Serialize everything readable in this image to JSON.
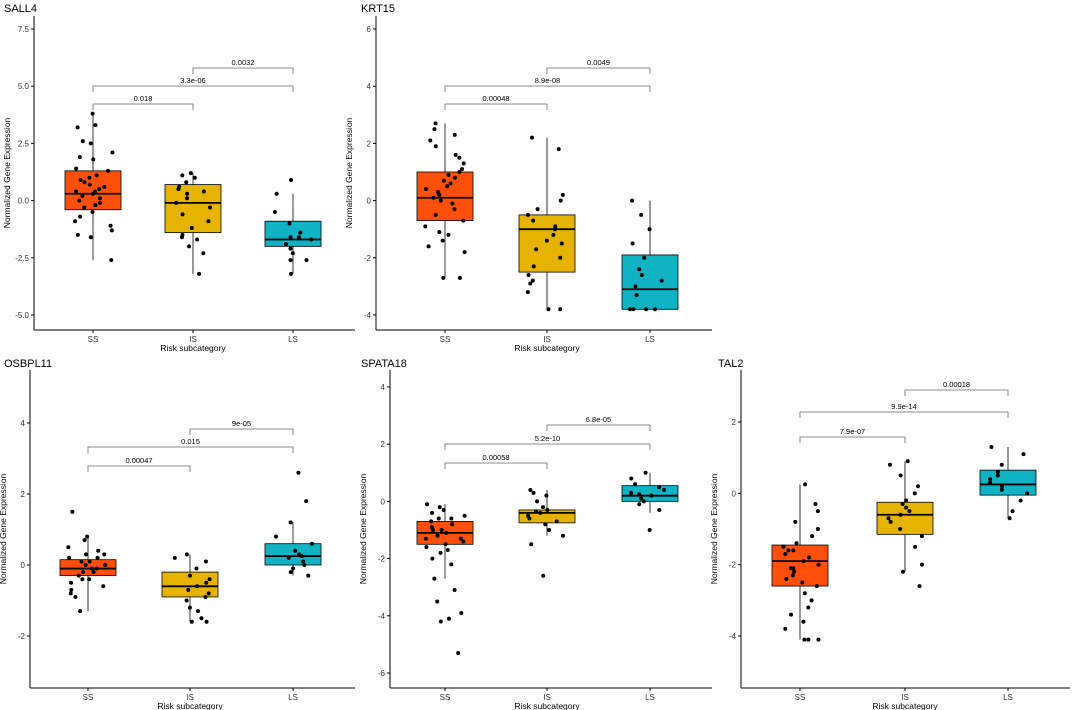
{
  "figure": {
    "xlabel": "Risk subcategory",
    "ylabel": "Normalized Gene Expression",
    "group_colors": {
      "SS": "#FF4F0A",
      "IS": "#E6B400",
      "LS": "#0FB3C3"
    }
  },
  "chart_data": [
    {
      "type": "box",
      "title": "SALL4",
      "xlabel": "Risk subcategory",
      "ylabel": "Normalized Gene Expression",
      "categories": [
        "SS",
        "IS",
        "LS"
      ],
      "ylim": [
        -6.1,
        7.9
      ],
      "yticks": [
        -5,
        -2.5,
        0,
        2.5,
        5,
        7.5
      ],
      "ytick_labels": [
        "-5.0",
        "-2.5",
        "0.0",
        "2.5",
        "5.0",
        "7.5"
      ],
      "boxes": [
        {
          "group": "SS",
          "whisker_low": -2.6,
          "q1": -0.4,
          "median": 0.3,
          "q3": 1.3,
          "whisker_high": 3.8
        },
        {
          "group": "IS",
          "whisker_low": -3.2,
          "q1": -1.4,
          "median": -0.1,
          "q3": 0.7,
          "whisker_high": 1.2
        },
        {
          "group": "LS",
          "whisker_low": -3.2,
          "q1": -2.0,
          "median": -1.7,
          "q3": -0.9,
          "whisker_high": 0.3
        }
      ],
      "points": [
        {
          "group": "SS",
          "values": [
            3.8,
            3.3,
            3.2,
            2.6,
            2.5,
            1.8,
            1.4,
            1.3,
            1.1,
            1.0,
            0.8,
            0.6,
            0.5,
            0.4,
            0.3,
            0.2,
            0.1,
            0.0,
            -0.2,
            -0.5,
            -0.7,
            -0.9,
            -1.1,
            -1.3,
            -1.5,
            -1.6,
            -2.6,
            0.9,
            0.7,
            0.4,
            -0.1,
            -0.3,
            1.9,
            2.1
          ]
        },
        {
          "group": "IS",
          "values": [
            1.2,
            1.1,
            1.0,
            0.8,
            0.6,
            0.4,
            0.3,
            0.1,
            -0.1,
            -0.3,
            -0.6,
            -0.9,
            -1.2,
            -1.5,
            -1.7,
            -2.0,
            -2.3,
            -3.2,
            0.5,
            -1.6
          ]
        },
        {
          "group": "LS",
          "values": [
            0.9,
            0.3,
            -0.5,
            -1.0,
            -1.4,
            -1.6,
            -1.7,
            -1.9,
            -2.1,
            -2.3,
            -2.6,
            -2.6,
            -3.2,
            -1.6
          ]
        }
      ],
      "comparisons": [
        {
          "from": "SS",
          "to": "IS",
          "label": "0.018"
        },
        {
          "from": "SS",
          "to": "LS",
          "label": "3.3e-06"
        },
        {
          "from": "IS",
          "to": "LS",
          "label": "0.0032"
        }
      ]
    },
    {
      "type": "box",
      "title": "KRT15",
      "xlabel": "Risk subcategory",
      "ylabel": "Normalized Gene Expression",
      "categories": [
        "SS",
        "IS",
        "LS"
      ],
      "ylim": [
        -4.4,
        6.6
      ],
      "yticks": [
        -4,
        -2,
        0,
        2,
        4,
        6
      ],
      "ytick_labels": [
        "-4",
        "-2",
        "0",
        "2",
        "4",
        "6"
      ],
      "boxes": [
        {
          "group": "SS",
          "whisker_low": -2.7,
          "q1": -0.7,
          "median": 0.1,
          "q3": 1.0,
          "whisker_high": 2.7
        },
        {
          "group": "IS",
          "whisker_low": -3.8,
          "q1": -2.5,
          "median": -1.0,
          "q3": -0.5,
          "whisker_high": 2.2
        },
        {
          "group": "LS",
          "whisker_low": -3.8,
          "q1": -3.8,
          "median": -3.1,
          "q3": -1.9,
          "whisker_high": 0.0
        }
      ],
      "points": [
        {
          "group": "SS",
          "values": [
            2.7,
            2.5,
            2.3,
            2.1,
            1.9,
            1.6,
            1.5,
            1.3,
            1.1,
            1.0,
            0.8,
            0.6,
            0.5,
            0.4,
            0.3,
            0.2,
            0.1,
            0.0,
            -0.1,
            -0.3,
            -0.5,
            -0.7,
            -0.9,
            -1.1,
            -1.2,
            -1.4,
            -1.6,
            -1.8,
            -2.7,
            -2.7,
            0.9,
            0.7
          ]
        },
        {
          "group": "IS",
          "values": [
            2.2,
            1.8,
            0.2,
            -0.3,
            -0.5,
            -0.7,
            -0.9,
            -1.0,
            -1.2,
            -1.5,
            -1.7,
            -2.0,
            -2.3,
            -2.6,
            -2.9,
            -3.2,
            -3.8,
            -3.8,
            0.0,
            -2.8,
            -1.4
          ]
        },
        {
          "group": "LS",
          "values": [
            0.0,
            -0.5,
            -1.0,
            -1.5,
            -2.0,
            -2.4,
            -2.6,
            -2.8,
            -3.0,
            -3.3,
            -3.8,
            -3.8,
            -3.8,
            -3.8
          ]
        }
      ],
      "comparisons": [
        {
          "from": "SS",
          "to": "IS",
          "label": "0.00048"
        },
        {
          "from": "SS",
          "to": "LS",
          "label": "8.9e-08"
        },
        {
          "from": "IS",
          "to": "LS",
          "label": "0.0049"
        }
      ]
    },
    {
      "type": "box",
      "title": "OSBPL11",
      "xlabel": "Risk subcategory",
      "ylabel": "Normalized Gene Expression",
      "categories": [
        "SS",
        "IS",
        "LS"
      ],
      "ylim": [
        -3.5,
        5.3
      ],
      "yticks": [
        -2,
        0,
        2,
        4
      ],
      "ytick_labels": [
        "-2",
        "0",
        "2",
        "4"
      ],
      "boxes": [
        {
          "group": "SS",
          "whisker_low": -1.3,
          "q1": -0.3,
          "median": -0.1,
          "q3": 0.15,
          "whisker_high": 0.8
        },
        {
          "group": "IS",
          "whisker_low": -1.6,
          "q1": -0.9,
          "median": -0.6,
          "q3": -0.2,
          "whisker_high": 0.3
        },
        {
          "group": "LS",
          "whisker_low": -0.3,
          "q1": 0.0,
          "median": 0.25,
          "q3": 0.6,
          "whisker_high": 1.2
        }
      ],
      "points": [
        {
          "group": "SS",
          "values": [
            1.5,
            0.8,
            0.7,
            0.5,
            0.4,
            0.3,
            0.2,
            0.1,
            0.0,
            -0.1,
            -0.2,
            -0.3,
            -0.4,
            -0.5,
            -0.6,
            -0.7,
            -0.8,
            -0.9,
            -1.3,
            0.2,
            -0.1,
            0.0,
            -0.2,
            0.1,
            0.3,
            -0.4
          ]
        },
        {
          "group": "IS",
          "values": [
            0.3,
            0.2,
            0.1,
            -0.1,
            -0.3,
            -0.5,
            -0.6,
            -0.7,
            -0.8,
            -0.9,
            -1.0,
            -1.2,
            -1.3,
            -1.5,
            -1.6,
            -1.6,
            -0.4
          ]
        },
        {
          "group": "LS",
          "values": [
            2.6,
            1.8,
            1.2,
            0.8,
            0.6,
            0.4,
            0.3,
            0.2,
            0.1,
            0.0,
            -0.1,
            -0.2,
            -0.3,
            0.25
          ]
        }
      ],
      "comparisons": [
        {
          "from": "SS",
          "to": "IS",
          "label": "0.00047"
        },
        {
          "from": "SS",
          "to": "LS",
          "label": "0.015"
        },
        {
          "from": "IS",
          "to": "LS",
          "label": "9e-05"
        }
      ]
    },
    {
      "type": "box",
      "title": "SPATA18",
      "xlabel": "Risk subcategory",
      "ylabel": "Normalized Gene Expression",
      "categories": [
        "SS",
        "IS",
        "LS"
      ],
      "ylim": [
        -6.4,
        4.4
      ],
      "yticks": [
        -6,
        -4,
        -2,
        0,
        2,
        4
      ],
      "ytick_labels": [
        "-6",
        "-4",
        "-2",
        "0",
        "2",
        "4"
      ],
      "boxes": [
        {
          "group": "SS",
          "whisker_low": -2.7,
          "q1": -1.5,
          "median": -1.1,
          "q3": -0.7,
          "whisker_high": -0.1
        },
        {
          "group": "IS",
          "whisker_low": -1.2,
          "q1": -0.75,
          "median": -0.4,
          "q3": -0.3,
          "whisker_high": 0.4
        },
        {
          "group": "LS",
          "whisker_low": -0.4,
          "q1": 0.0,
          "median": 0.2,
          "q3": 0.55,
          "whisker_high": 1.0
        }
      ],
      "points": [
        {
          "group": "SS",
          "values": [
            -0.1,
            -0.2,
            -0.3,
            -0.5,
            -0.6,
            -0.7,
            -0.8,
            -0.9,
            -1.0,
            -1.1,
            -1.2,
            -1.3,
            -1.4,
            -1.5,
            -1.6,
            -1.8,
            -2.0,
            -2.2,
            -2.7,
            -3.1,
            -3.5,
            -3.9,
            -4.1,
            -4.2,
            -5.3,
            -0.4,
            -0.6,
            -1.0,
            -1.3,
            -1.7
          ]
        },
        {
          "group": "IS",
          "values": [
            0.4,
            0.3,
            0.2,
            0.0,
            -0.2,
            -0.3,
            -0.4,
            -0.5,
            -0.6,
            -0.7,
            -0.8,
            -1.0,
            -1.2,
            -1.5,
            -2.6,
            -0.35
          ]
        },
        {
          "group": "LS",
          "values": [
            1.0,
            0.8,
            0.6,
            0.5,
            0.4,
            0.3,
            0.2,
            0.1,
            0.0,
            -0.1,
            -0.3,
            -1.0,
            0.25
          ]
        }
      ],
      "comparisons": [
        {
          "from": "SS",
          "to": "IS",
          "label": "0.00058"
        },
        {
          "from": "SS",
          "to": "LS",
          "label": "5.2e-10"
        },
        {
          "from": "IS",
          "to": "LS",
          "label": "6.8e-05"
        }
      ]
    },
    {
      "type": "box",
      "title": "TAL2",
      "xlabel": "Risk subcategory",
      "ylabel": "Normalized Gene Expression",
      "categories": [
        "SS",
        "IS",
        "LS"
      ],
      "ylim": [
        -5.4,
        3.3
      ],
      "yticks": [
        -4,
        -2,
        0,
        2
      ],
      "ytick_labels": [
        "-4",
        "-2",
        "0",
        "2"
      ],
      "boxes": [
        {
          "group": "SS",
          "whisker_low": -4.1,
          "q1": -2.6,
          "median": -1.9,
          "q3": -1.45,
          "whisker_high": 0.25
        },
        {
          "group": "IS",
          "whisker_low": -2.2,
          "q1": -1.15,
          "median": -0.6,
          "q3": -0.25,
          "whisker_high": 0.9
        },
        {
          "group": "LS",
          "whisker_low": -0.7,
          "q1": -0.05,
          "median": 0.25,
          "q3": 0.65,
          "whisker_high": 1.3
        }
      ],
      "points": [
        {
          "group": "SS",
          "values": [
            0.25,
            -0.3,
            -0.5,
            -0.8,
            -1.0,
            -1.2,
            -1.4,
            -1.5,
            -1.6,
            -1.7,
            -1.8,
            -1.9,
            -2.0,
            -2.1,
            -2.2,
            -2.3,
            -2.4,
            -2.6,
            -2.8,
            -3.0,
            -3.2,
            -3.4,
            -3.6,
            -3.8,
            -4.1,
            -4.1,
            -4.1,
            -1.6,
            -2.1,
            -2.5
          ]
        },
        {
          "group": "IS",
          "values": [
            0.9,
            0.8,
            0.5,
            0.2,
            0.0,
            -0.2,
            -0.4,
            -0.5,
            -0.6,
            -0.7,
            -0.8,
            -1.0,
            -1.2,
            -1.5,
            -2.0,
            -2.2,
            -2.6,
            -0.3
          ]
        },
        {
          "group": "LS",
          "values": [
            1.3,
            1.1,
            0.8,
            0.6,
            0.5,
            0.3,
            0.2,
            0.1,
            0.0,
            -0.2,
            -0.5,
            -0.7,
            0.4
          ]
        }
      ],
      "comparisons": [
        {
          "from": "SS",
          "to": "IS",
          "label": "7.9e-07"
        },
        {
          "from": "SS",
          "to": "LS",
          "label": "9.9e-14"
        },
        {
          "from": "IS",
          "to": "LS",
          "label": "0.00018"
        }
      ]
    }
  ]
}
